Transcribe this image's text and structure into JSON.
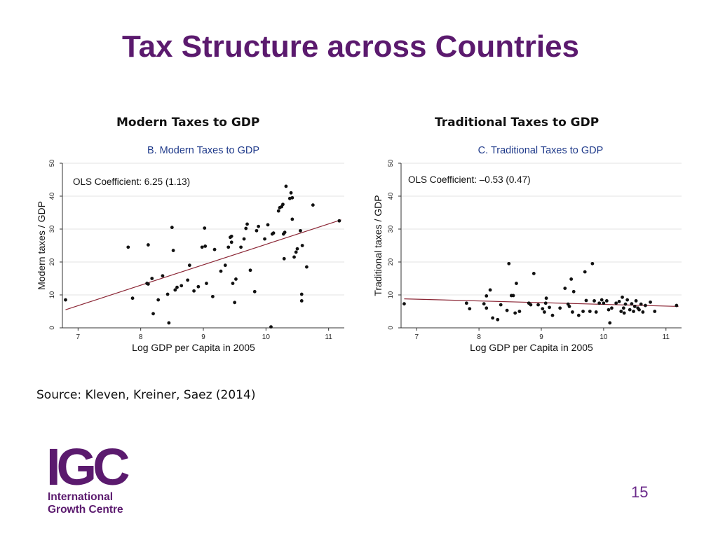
{
  "slide": {
    "title": "Tax Structure across Countries",
    "left_heading": "Modern Taxes to GDP",
    "right_heading": "Traditional Taxes to GDP",
    "source": "Source: Kleven, Kreiner, Saez (2014)",
    "page_number": "15",
    "logo": {
      "mark": "IGC",
      "line1": "International",
      "line2": "Growth Centre",
      "color": "#5b1a6e"
    }
  },
  "colors": {
    "title": "#5b1a6e",
    "panel_title": "#1f3a8a",
    "fit_line": "#8b2635",
    "points": "#111111",
    "grid": "#e3e3e3"
  },
  "chart_data": [
    {
      "type": "scatter",
      "title": "B. Modern Taxes to GDP",
      "xlabel": "Log GDP per Capita in 2005",
      "ylabel": "Modern taxes / GDP",
      "annotation": "OLS Coefficient: 6.25 (1.13)",
      "xlim": [
        6.75,
        11.25
      ],
      "ylim": [
        0,
        50
      ],
      "xticks": [
        7,
        8,
        9,
        10,
        11
      ],
      "yticks": [
        0,
        10,
        20,
        30,
        40,
        50
      ],
      "grid": true,
      "fit_line": [
        [
          6.8,
          5.5
        ],
        [
          11.2,
          32.8
        ]
      ],
      "points": [
        [
          6.8,
          8.5
        ],
        [
          7.8,
          24.5
        ],
        [
          7.87,
          9
        ],
        [
          8.1,
          13.5
        ],
        [
          8.12,
          13.3
        ],
        [
          8.12,
          25.2
        ],
        [
          8.18,
          15
        ],
        [
          8.2,
          4.3
        ],
        [
          8.28,
          8.5
        ],
        [
          8.35,
          15.8
        ],
        [
          8.43,
          10.2
        ],
        [
          8.45,
          1.5
        ],
        [
          8.5,
          30.5
        ],
        [
          8.52,
          23.5
        ],
        [
          8.55,
          11.5
        ],
        [
          8.58,
          12.3
        ],
        [
          8.65,
          12.8
        ],
        [
          8.75,
          14.5
        ],
        [
          8.78,
          19
        ],
        [
          8.85,
          11.2
        ],
        [
          8.92,
          12.5
        ],
        [
          8.98,
          24.5
        ],
        [
          9.02,
          30.3
        ],
        [
          9.03,
          24.8
        ],
        [
          9.05,
          13.5
        ],
        [
          9.15,
          9.5
        ],
        [
          9.18,
          23.8
        ],
        [
          9.28,
          17.2
        ],
        [
          9.35,
          19
        ],
        [
          9.4,
          24.5
        ],
        [
          9.43,
          27.5
        ],
        [
          9.45,
          27.8
        ],
        [
          9.45,
          26
        ],
        [
          9.47,
          13.5
        ],
        [
          9.5,
          7.7
        ],
        [
          9.52,
          14.8
        ],
        [
          9.6,
          24.5
        ],
        [
          9.65,
          27
        ],
        [
          9.68,
          30.2
        ],
        [
          9.7,
          31.5
        ],
        [
          9.75,
          17.5
        ],
        [
          9.82,
          11
        ],
        [
          9.85,
          29.5
        ],
        [
          9.88,
          30.8
        ],
        [
          9.98,
          27
        ],
        [
          10.03,
          31.3
        ],
        [
          10.08,
          0.3
        ],
        [
          10.1,
          28.5
        ],
        [
          10.12,
          28.8
        ],
        [
          10.2,
          35.5
        ],
        [
          10.22,
          36.5
        ],
        [
          10.25,
          36.8
        ],
        [
          10.27,
          37.5
        ],
        [
          10.28,
          28.5
        ],
        [
          10.29,
          21
        ],
        [
          10.3,
          29
        ],
        [
          10.32,
          43
        ],
        [
          10.38,
          39.3
        ],
        [
          10.4,
          41
        ],
        [
          10.42,
          39.5
        ],
        [
          10.42,
          33
        ],
        [
          10.45,
          21.5
        ],
        [
          10.48,
          23
        ],
        [
          10.5,
          24
        ],
        [
          10.55,
          29.5
        ],
        [
          10.57,
          10.2
        ],
        [
          10.57,
          8.2
        ],
        [
          10.58,
          25
        ],
        [
          10.65,
          18.5
        ],
        [
          10.75,
          37.3
        ],
        [
          11.17,
          32.5
        ]
      ]
    },
    {
      "type": "scatter",
      "title": "C. Traditional Taxes to GDP",
      "xlabel": "Log GDP per Capita in 2005",
      "ylabel": "Traditional taxes / GDP",
      "annotation": "OLS Coefficient: –0.53 (0.47)",
      "xlim": [
        6.75,
        11.25
      ],
      "ylim": [
        0,
        50
      ],
      "xticks": [
        7,
        8,
        9,
        10,
        11
      ],
      "yticks": [
        0,
        10,
        20,
        30,
        40,
        50
      ],
      "grid": true,
      "fit_line": [
        [
          6.8,
          8.8
        ],
        [
          11.2,
          6.5
        ]
      ],
      "points": [
        [
          6.8,
          7.3
        ],
        [
          7.8,
          7.5
        ],
        [
          7.85,
          5.8
        ],
        [
          8.08,
          7.3
        ],
        [
          8.12,
          9.7
        ],
        [
          8.12,
          6
        ],
        [
          8.18,
          11.5
        ],
        [
          8.22,
          3
        ],
        [
          8.3,
          2.5
        ],
        [
          8.35,
          7
        ],
        [
          8.45,
          5.3
        ],
        [
          8.48,
          19.5
        ],
        [
          8.52,
          9.8
        ],
        [
          8.55,
          9.8
        ],
        [
          8.58,
          4.5
        ],
        [
          8.6,
          13.5
        ],
        [
          8.65,
          5
        ],
        [
          8.8,
          7.5
        ],
        [
          8.83,
          7
        ],
        [
          8.88,
          16.5
        ],
        [
          8.95,
          7
        ],
        [
          9.02,
          5.8
        ],
        [
          9.05,
          4.8
        ],
        [
          9.07,
          7.5
        ],
        [
          9.08,
          9
        ],
        [
          9.13,
          6.2
        ],
        [
          9.18,
          3.8
        ],
        [
          9.3,
          6
        ],
        [
          9.38,
          12
        ],
        [
          9.43,
          7.2
        ],
        [
          9.45,
          6.5
        ],
        [
          9.48,
          14.8
        ],
        [
          9.5,
          4.8
        ],
        [
          9.52,
          11
        ],
        [
          9.6,
          3.8
        ],
        [
          9.67,
          5
        ],
        [
          9.7,
          17
        ],
        [
          9.72,
          8.3
        ],
        [
          9.78,
          5
        ],
        [
          9.82,
          19.5
        ],
        [
          9.85,
          8.2
        ],
        [
          9.88,
          4.8
        ],
        [
          9.93,
          7.5
        ],
        [
          9.97,
          8.5
        ],
        [
          10.0,
          7.5
        ],
        [
          10.05,
          8.2
        ],
        [
          10.08,
          5.5
        ],
        [
          10.1,
          1.5
        ],
        [
          10.13,
          6
        ],
        [
          10.2,
          7.5
        ],
        [
          10.25,
          8
        ],
        [
          10.28,
          5
        ],
        [
          10.3,
          9.3
        ],
        [
          10.32,
          6
        ],
        [
          10.33,
          4.5
        ],
        [
          10.35,
          7.2
        ],
        [
          10.38,
          8.5
        ],
        [
          10.42,
          5.5
        ],
        [
          10.45,
          7.3
        ],
        [
          10.48,
          5
        ],
        [
          10.5,
          6.5
        ],
        [
          10.52,
          8.2
        ],
        [
          10.55,
          6
        ],
        [
          10.57,
          5.5
        ],
        [
          10.6,
          7.2
        ],
        [
          10.63,
          4.8
        ],
        [
          10.67,
          6.8
        ],
        [
          10.75,
          7.8
        ],
        [
          10.82,
          5
        ],
        [
          11.17,
          6.8
        ]
      ]
    }
  ]
}
